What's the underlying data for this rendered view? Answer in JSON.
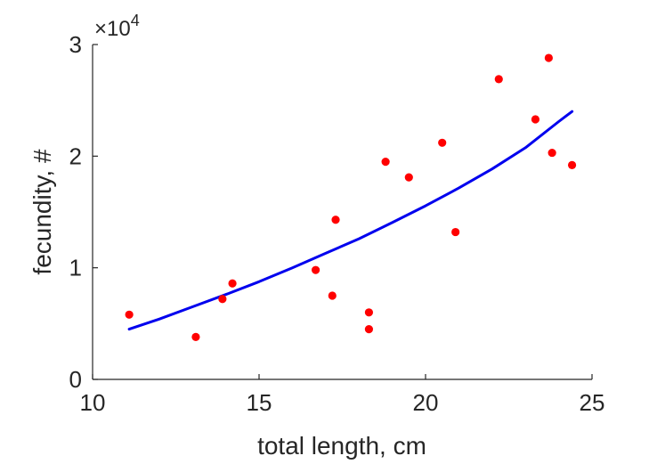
{
  "chart_data": {
    "type": "scatter",
    "title": "",
    "xlabel": "total length, cm",
    "ylabel": "fecundity, #",
    "xlim": [
      10,
      25
    ],
    "ylim": [
      0,
      30000
    ],
    "xticks": [
      10,
      15,
      20,
      25
    ],
    "yticks": [
      0,
      10000,
      20000,
      30000
    ],
    "xtick_labels": [
      "10",
      "15",
      "20",
      "25"
    ],
    "ytick_labels": [
      "0",
      "1",
      "2",
      "3"
    ],
    "y_exponent_label": "×10",
    "y_exponent_power": "4",
    "grid": false,
    "legend": "none",
    "series": [
      {
        "type": "scatter",
        "color": "#ff0000",
        "points": [
          {
            "x": 11.1,
            "y": 5800
          },
          {
            "x": 13.1,
            "y": 3800
          },
          {
            "x": 13.9,
            "y": 7200
          },
          {
            "x": 14.2,
            "y": 8600
          },
          {
            "x": 16.7,
            "y": 9800
          },
          {
            "x": 17.2,
            "y": 7500
          },
          {
            "x": 17.3,
            "y": 14300
          },
          {
            "x": 18.3,
            "y": 6000
          },
          {
            "x": 18.3,
            "y": 4500
          },
          {
            "x": 18.8,
            "y": 19500
          },
          {
            "x": 19.5,
            "y": 18100
          },
          {
            "x": 20.5,
            "y": 21200
          },
          {
            "x": 20.9,
            "y": 13200
          },
          {
            "x": 22.2,
            "y": 26900
          },
          {
            "x": 23.3,
            "y": 23300
          },
          {
            "x": 23.7,
            "y": 28800
          },
          {
            "x": 23.8,
            "y": 20300
          },
          {
            "x": 24.4,
            "y": 19200
          }
        ]
      },
      {
        "type": "line",
        "color": "#0000ee",
        "points": [
          {
            "x": 11.1,
            "y": 4500
          },
          {
            "x": 12.0,
            "y": 5400
          },
          {
            "x": 13.0,
            "y": 6500
          },
          {
            "x": 14.0,
            "y": 7600
          },
          {
            "x": 15.0,
            "y": 8750
          },
          {
            "x": 16.0,
            "y": 10000
          },
          {
            "x": 17.0,
            "y": 11300
          },
          {
            "x": 18.0,
            "y": 12600
          },
          {
            "x": 19.0,
            "y": 14050
          },
          {
            "x": 20.0,
            "y": 15550
          },
          {
            "x": 21.0,
            "y": 17150
          },
          {
            "x": 22.0,
            "y": 18850
          },
          {
            "x": 23.0,
            "y": 20750
          },
          {
            "x": 24.0,
            "y": 23100
          },
          {
            "x": 24.4,
            "y": 24000
          }
        ]
      }
    ]
  }
}
